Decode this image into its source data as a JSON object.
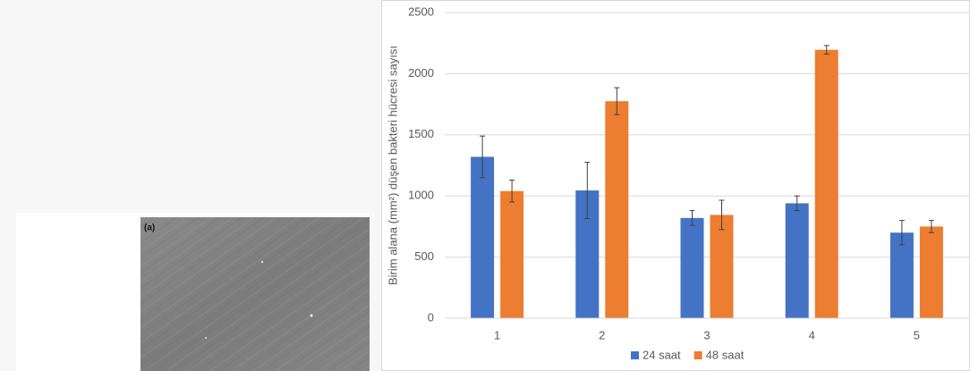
{
  "image_panel": {
    "label": "(a)"
  },
  "chart_data": {
    "type": "bar",
    "y_label": "Birim alana (mm²) düşen bakteri hücresi sayısı",
    "categories": [
      "1",
      "2",
      "3",
      "4",
      "5"
    ],
    "series": [
      {
        "name": "24 saat",
        "color": "#4472c4",
        "values": [
          1320,
          1045,
          820,
          940,
          700
        ],
        "errors": [
          170,
          230,
          60,
          60,
          100
        ]
      },
      {
        "name": "48 saat",
        "color": "#ed7d31",
        "values": [
          1040,
          1775,
          845,
          2195,
          750
        ],
        "errors": [
          90,
          110,
          120,
          35,
          50
        ]
      }
    ],
    "ylim": [
      0,
      2500
    ],
    "yticks": [
      0,
      500,
      1000,
      1500,
      2000,
      2500
    ],
    "grid": true,
    "legend": "bottom"
  }
}
